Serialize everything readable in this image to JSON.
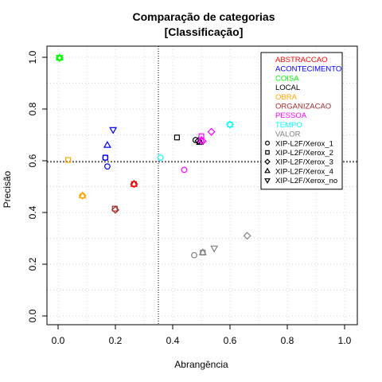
{
  "chart_data": {
    "type": "scatter",
    "title": "Comparação de categorias",
    "subtitle": "[Classificação]",
    "xlabel": "Abrangência",
    "ylabel": "Precisão",
    "xlim": [
      0,
      1
    ],
    "ylim": [
      0,
      1
    ],
    "x_ticks": [
      "0.0",
      "0.2",
      "0.4",
      "0.6",
      "0.8",
      "1.0"
    ],
    "y_ticks": [
      "0.0",
      "0.2",
      "0.4",
      "0.6",
      "0.8",
      "1.0"
    ],
    "grid": true,
    "reference_lines": {
      "vertical_x": 0.35,
      "horizontal_y": 0.596
    },
    "legend_position": "top-right",
    "categories": [
      {
        "name": "ABSTRACCAO",
        "color": "#ff0000"
      },
      {
        "name": "ACONTECIMENTO",
        "color": "#0000ff"
      },
      {
        "name": "COISA",
        "color": "#00ff00"
      },
      {
        "name": "LOCAL",
        "color": "#000000"
      },
      {
        "name": "OBRA",
        "color": "#ffa500"
      },
      {
        "name": "ORGANIZACAO",
        "color": "#a52a2a"
      },
      {
        "name": "PESSOA",
        "color": "#ff00ff"
      },
      {
        "name": "TEMPO",
        "color": "#00ffff"
      },
      {
        "name": "VALOR",
        "color": "#808080"
      }
    ],
    "systems": [
      {
        "name": "XIP-L2F/Xerox_1",
        "marker": "circle"
      },
      {
        "name": "XIP-L2F/Xerox_2",
        "marker": "square"
      },
      {
        "name": "XIP-L2F/Xerox_3",
        "marker": "diamond"
      },
      {
        "name": "XIP-L2F/Xerox_4",
        "marker": "triangle-up"
      },
      {
        "name": "XIP-L2F/Xerox_no",
        "marker": "triangle-down"
      }
    ],
    "points": [
      {
        "x": 0.005,
        "y": 0.998,
        "category": "COISA",
        "system": "XIP-L2F/Xerox_1"
      },
      {
        "x": 0.005,
        "y": 0.998,
        "category": "COISA",
        "system": "XIP-L2F/Xerox_2"
      },
      {
        "x": 0.005,
        "y": 0.998,
        "category": "COISA",
        "system": "XIP-L2F/Xerox_3"
      },
      {
        "x": 0.005,
        "y": 0.998,
        "category": "COISA",
        "system": "XIP-L2F/Xerox_4"
      },
      {
        "x": 0.005,
        "y": 0.998,
        "category": "COISA",
        "system": "XIP-L2F/Xerox_no"
      },
      {
        "x": 0.035,
        "y": 0.603,
        "category": "OBRA",
        "system": "XIP-L2F/Xerox_2"
      },
      {
        "x": 0.085,
        "y": 0.465,
        "category": "OBRA",
        "system": "XIP-L2F/Xerox_1"
      },
      {
        "x": 0.085,
        "y": 0.465,
        "category": "OBRA",
        "system": "XIP-L2F/Xerox_3"
      },
      {
        "x": 0.085,
        "y": 0.465,
        "category": "OBRA",
        "system": "XIP-L2F/Xerox_4"
      },
      {
        "x": 0.165,
        "y": 0.612,
        "category": "ACONTECIMENTO",
        "system": "XIP-L2F/Xerox_1"
      },
      {
        "x": 0.165,
        "y": 0.612,
        "category": "ACONTECIMENTO",
        "system": "XIP-L2F/Xerox_2"
      },
      {
        "x": 0.172,
        "y": 0.578,
        "category": "ACONTECIMENTO",
        "system": "XIP-L2F/Xerox_1"
      },
      {
        "x": 0.172,
        "y": 0.66,
        "category": "ACONTECIMENTO",
        "system": "XIP-L2F/Xerox_4"
      },
      {
        "x": 0.192,
        "y": 0.72,
        "category": "ACONTECIMENTO",
        "system": "XIP-L2F/Xerox_no"
      },
      {
        "x": 0.198,
        "y": 0.415,
        "category": "ORGANIZACAO",
        "system": "XIP-L2F/Xerox_2"
      },
      {
        "x": 0.2,
        "y": 0.41,
        "category": "ORGANIZACAO",
        "system": "XIP-L2F/Xerox_3"
      },
      {
        "x": 0.265,
        "y": 0.51,
        "category": "ORGANIZACAO",
        "system": "XIP-L2F/Xerox_1"
      },
      {
        "x": 0.265,
        "y": 0.51,
        "category": "ORGANIZACAO",
        "system": "XIP-L2F/Xerox_4"
      },
      {
        "x": 0.265,
        "y": 0.51,
        "category": "ABSTRACCAO",
        "system": "XIP-L2F/Xerox_2"
      },
      {
        "x": 0.265,
        "y": 0.51,
        "category": "ABSTRACCAO",
        "system": "XIP-L2F/Xerox_3"
      },
      {
        "x": 0.357,
        "y": 0.612,
        "category": "TEMPO",
        "system": "XIP-L2F/Xerox_1"
      },
      {
        "x": 0.6,
        "y": 0.74,
        "category": "TEMPO",
        "system": "XIP-L2F/Xerox_2"
      },
      {
        "x": 0.6,
        "y": 0.74,
        "category": "TEMPO",
        "system": "XIP-L2F/Xerox_3"
      },
      {
        "x": 0.415,
        "y": 0.69,
        "category": "LOCAL",
        "system": "XIP-L2F/Xerox_2"
      },
      {
        "x": 0.48,
        "y": 0.68,
        "category": "LOCAL",
        "system": "XIP-L2F/Xerox_1"
      },
      {
        "x": 0.49,
        "y": 0.677,
        "category": "LOCAL",
        "system": "XIP-L2F/Xerox_3"
      },
      {
        "x": 0.495,
        "y": 0.672,
        "category": "LOCAL",
        "system": "XIP-L2F/Xerox_4"
      },
      {
        "x": 0.44,
        "y": 0.565,
        "category": "PESSOA",
        "system": "XIP-L2F/Xerox_1"
      },
      {
        "x": 0.5,
        "y": 0.695,
        "category": "PESSOA",
        "system": "XIP-L2F/Xerox_2"
      },
      {
        "x": 0.5,
        "y": 0.68,
        "category": "PESSOA",
        "system": "XIP-L2F/Xerox_4"
      },
      {
        "x": 0.505,
        "y": 0.676,
        "category": "PESSOA",
        "system": "XIP-L2F/Xerox_3"
      },
      {
        "x": 0.535,
        "y": 0.712,
        "category": "PESSOA",
        "system": "XIP-L2F/Xerox_3"
      },
      {
        "x": 0.475,
        "y": 0.235,
        "category": "VALOR",
        "system": "XIP-L2F/Xerox_1"
      },
      {
        "x": 0.505,
        "y": 0.245,
        "category": "VALOR",
        "system": "XIP-L2F/Xerox_2"
      },
      {
        "x": 0.505,
        "y": 0.245,
        "category": "VALOR",
        "system": "XIP-L2F/Xerox_4"
      },
      {
        "x": 0.545,
        "y": 0.262,
        "category": "VALOR",
        "system": "XIP-L2F/Xerox_no"
      },
      {
        "x": 0.66,
        "y": 0.31,
        "category": "VALOR",
        "system": "XIP-L2F/Xerox_3"
      }
    ]
  }
}
